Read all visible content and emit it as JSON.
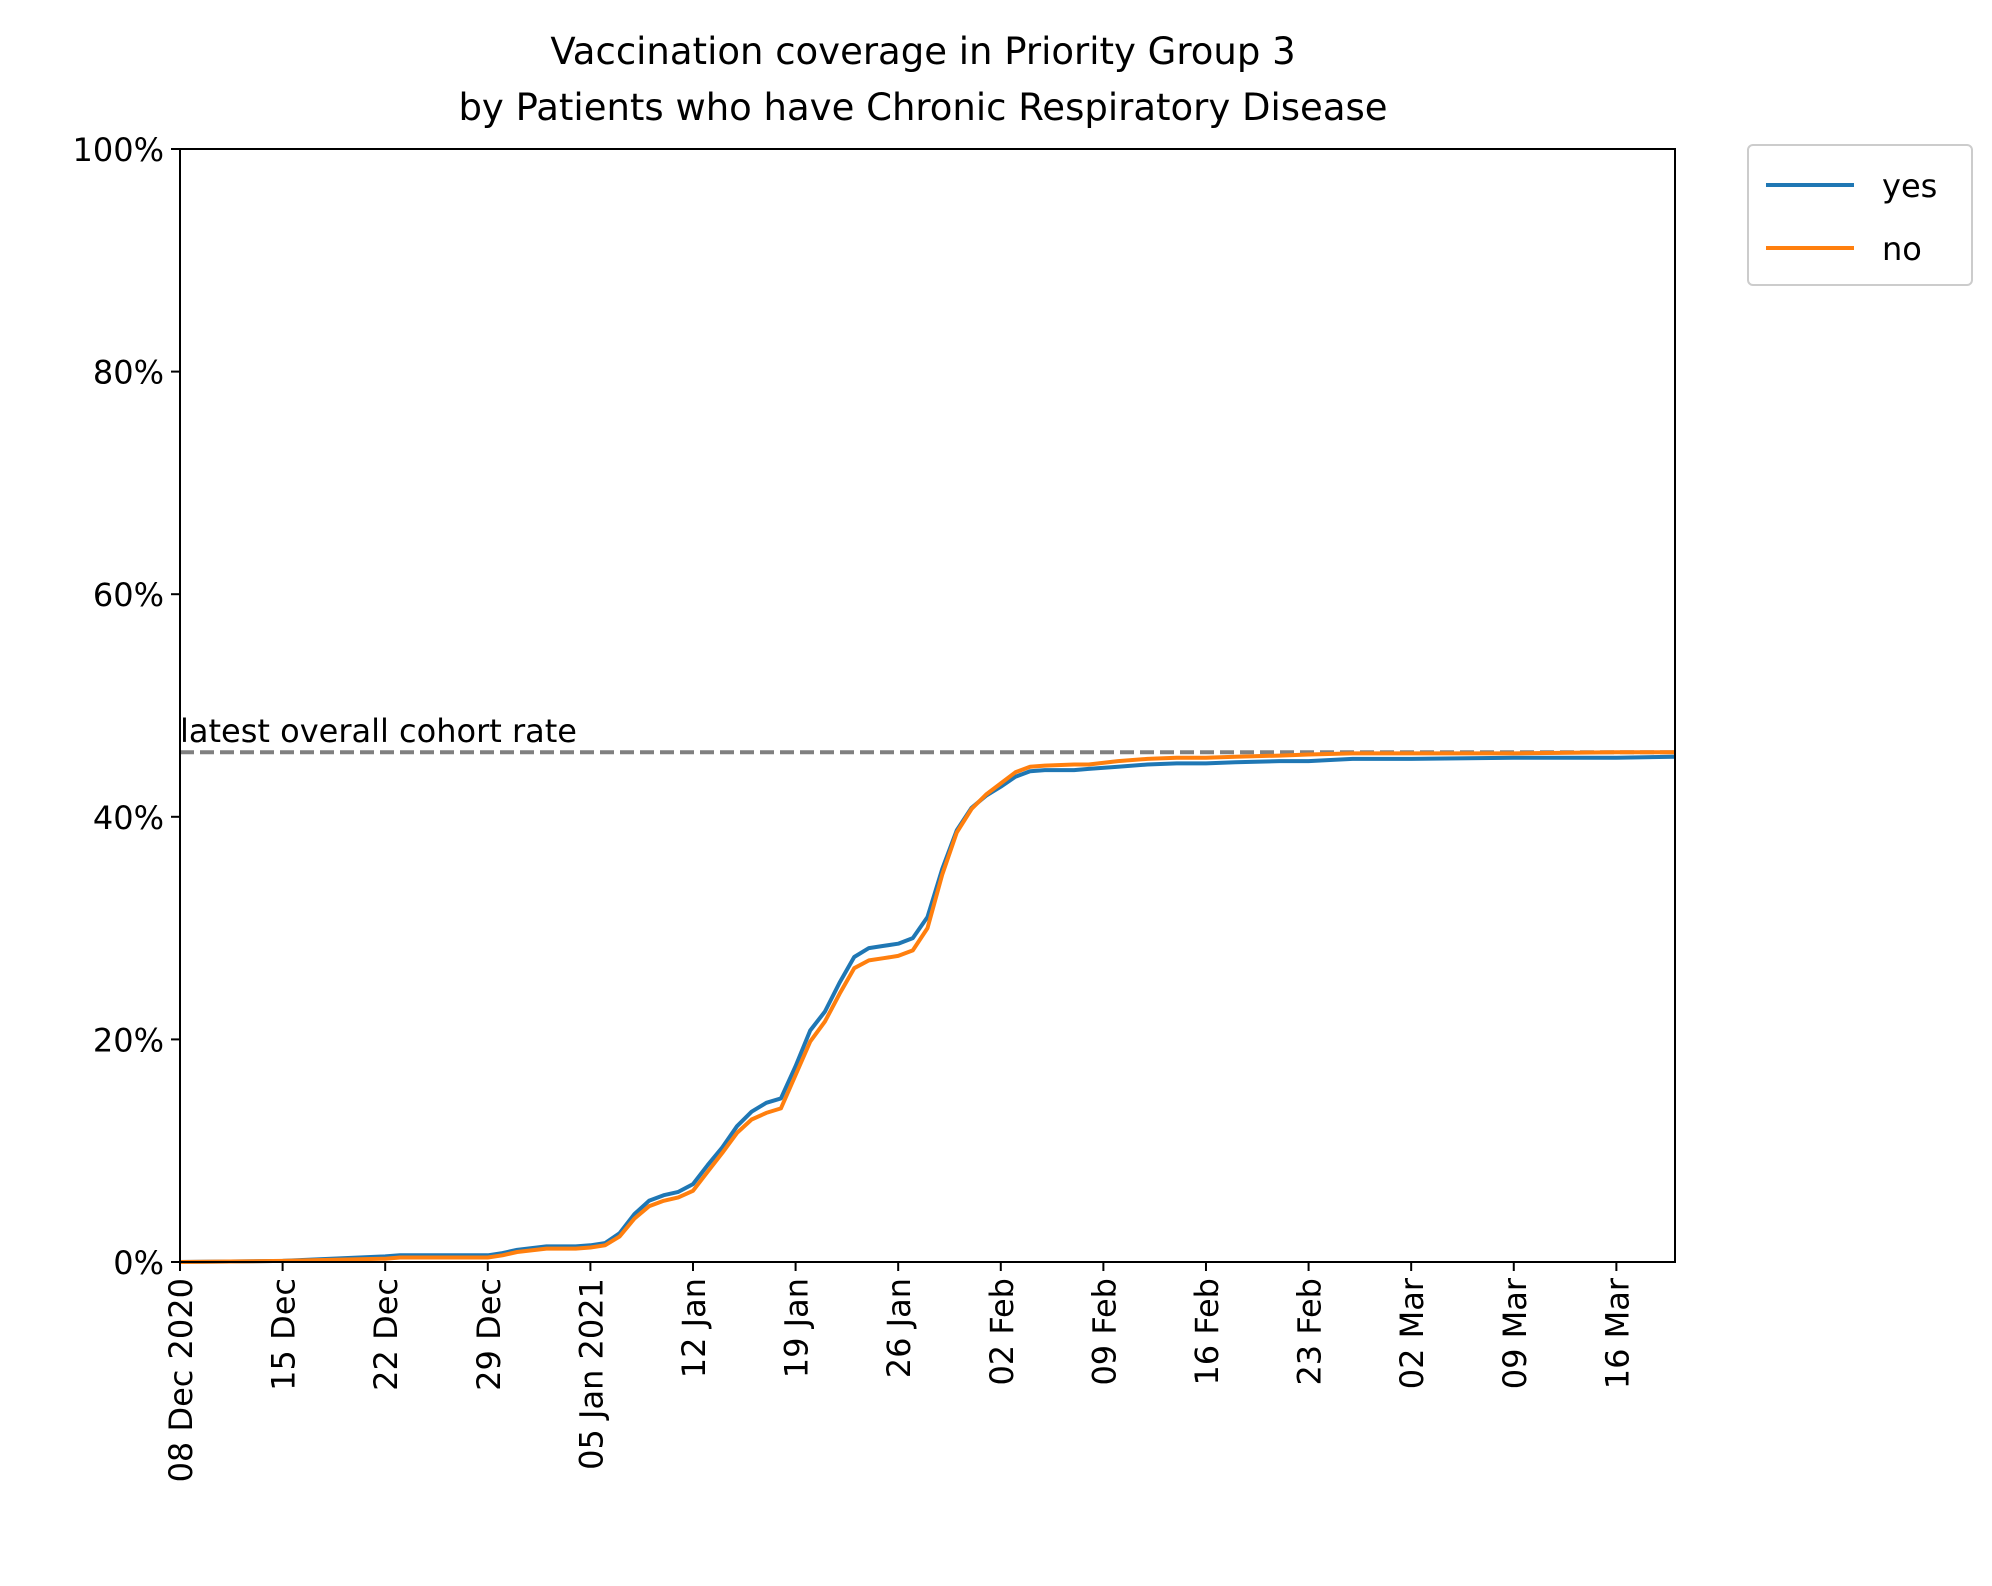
{
  "chart_data": {
    "type": "line",
    "title_line1": "Vaccination coverage in Priority Group 3",
    "title_line2": "by Patients who have Chronic Respiratory Disease",
    "xlabel": "",
    "ylabel": "",
    "ylim": [
      0,
      100
    ],
    "y_ticks": [
      "0%",
      "20%",
      "40%",
      "60%",
      "80%",
      "100%"
    ],
    "x_range": [
      "2020-12-08",
      "2021-03-20"
    ],
    "x_ticks": [
      {
        "date": "2020-12-08",
        "label": "08 Dec 2020"
      },
      {
        "date": "2020-12-15",
        "label": "15 Dec"
      },
      {
        "date": "2020-12-22",
        "label": "22 Dec"
      },
      {
        "date": "2020-12-29",
        "label": "29 Dec"
      },
      {
        "date": "2021-01-05",
        "label": "05 Jan 2021"
      },
      {
        "date": "2021-01-12",
        "label": "12 Jan"
      },
      {
        "date": "2021-01-19",
        "label": "19 Jan"
      },
      {
        "date": "2021-01-26",
        "label": "26 Jan"
      },
      {
        "date": "2021-02-02",
        "label": "02 Feb"
      },
      {
        "date": "2021-02-09",
        "label": "09 Feb"
      },
      {
        "date": "2021-02-16",
        "label": "16 Feb"
      },
      {
        "date": "2021-02-23",
        "label": "23 Feb"
      },
      {
        "date": "2021-03-02",
        "label": "02 Mar"
      },
      {
        "date": "2021-03-09",
        "label": "09 Mar"
      },
      {
        "date": "2021-03-16",
        "label": "16 Mar"
      }
    ],
    "reference_line": {
      "value": 45.8,
      "label": "latest overall cohort rate",
      "color": "#808080"
    },
    "legend_position": "outside top-right",
    "series": [
      {
        "name": "yes",
        "color": "#1f77b4",
        "points": [
          [
            "2020-12-08",
            0.0
          ],
          [
            "2020-12-15",
            0.1
          ],
          [
            "2020-12-22",
            0.5
          ],
          [
            "2020-12-23",
            0.6
          ],
          [
            "2020-12-29",
            0.6
          ],
          [
            "2020-12-30",
            0.8
          ],
          [
            "2020-12-31",
            1.1
          ],
          [
            "2021-01-02",
            1.4
          ],
          [
            "2021-01-04",
            1.4
          ],
          [
            "2021-01-05",
            1.5
          ],
          [
            "2021-01-06",
            1.7
          ],
          [
            "2021-01-07",
            2.6
          ],
          [
            "2021-01-08",
            4.3
          ],
          [
            "2021-01-09",
            5.5
          ],
          [
            "2021-01-10",
            6.0
          ],
          [
            "2021-01-11",
            6.3
          ],
          [
            "2021-01-12",
            7.0
          ],
          [
            "2021-01-13",
            8.7
          ],
          [
            "2021-01-14",
            10.3
          ],
          [
            "2021-01-15",
            12.2
          ],
          [
            "2021-01-16",
            13.5
          ],
          [
            "2021-01-17",
            14.3
          ],
          [
            "2021-01-18",
            14.7
          ],
          [
            "2021-01-19",
            17.6
          ],
          [
            "2021-01-20",
            20.8
          ],
          [
            "2021-01-21",
            22.5
          ],
          [
            "2021-01-22",
            25.1
          ],
          [
            "2021-01-23",
            27.4
          ],
          [
            "2021-01-24",
            28.2
          ],
          [
            "2021-01-25",
            28.4
          ],
          [
            "2021-01-26",
            28.6
          ],
          [
            "2021-01-27",
            29.1
          ],
          [
            "2021-01-28",
            31.0
          ],
          [
            "2021-01-29",
            35.3
          ],
          [
            "2021-01-30",
            38.8
          ],
          [
            "2021-01-31",
            40.8
          ],
          [
            "2021-02-01",
            41.9
          ],
          [
            "2021-02-02",
            42.7
          ],
          [
            "2021-02-03",
            43.6
          ],
          [
            "2021-02-04",
            44.1
          ],
          [
            "2021-02-05",
            44.2
          ],
          [
            "2021-02-07",
            44.2
          ],
          [
            "2021-02-08",
            44.3
          ],
          [
            "2021-02-10",
            44.5
          ],
          [
            "2021-02-12",
            44.7
          ],
          [
            "2021-02-14",
            44.8
          ],
          [
            "2021-02-16",
            44.8
          ],
          [
            "2021-02-18",
            44.9
          ],
          [
            "2021-02-21",
            45.0
          ],
          [
            "2021-02-23",
            45.0
          ],
          [
            "2021-02-26",
            45.2
          ],
          [
            "2021-03-02",
            45.2
          ],
          [
            "2021-03-09",
            45.3
          ],
          [
            "2021-03-16",
            45.3
          ],
          [
            "2021-03-20",
            45.4
          ]
        ]
      },
      {
        "name": "no",
        "color": "#ff7f0e",
        "points": [
          [
            "2020-12-08",
            0.0
          ],
          [
            "2020-12-15",
            0.1
          ],
          [
            "2020-12-22",
            0.3
          ],
          [
            "2020-12-23",
            0.4
          ],
          [
            "2020-12-29",
            0.4
          ],
          [
            "2020-12-30",
            0.6
          ],
          [
            "2020-12-31",
            0.9
          ],
          [
            "2021-01-02",
            1.2
          ],
          [
            "2021-01-04",
            1.2
          ],
          [
            "2021-01-05",
            1.3
          ],
          [
            "2021-01-06",
            1.5
          ],
          [
            "2021-01-07",
            2.3
          ],
          [
            "2021-01-08",
            3.9
          ],
          [
            "2021-01-09",
            5.0
          ],
          [
            "2021-01-10",
            5.5
          ],
          [
            "2021-01-11",
            5.8
          ],
          [
            "2021-01-12",
            6.4
          ],
          [
            "2021-01-13",
            8.1
          ],
          [
            "2021-01-14",
            9.8
          ],
          [
            "2021-01-15",
            11.6
          ],
          [
            "2021-01-16",
            12.8
          ],
          [
            "2021-01-17",
            13.4
          ],
          [
            "2021-01-18",
            13.8
          ],
          [
            "2021-01-19",
            16.8
          ],
          [
            "2021-01-20",
            19.8
          ],
          [
            "2021-01-21",
            21.6
          ],
          [
            "2021-01-22",
            24.1
          ],
          [
            "2021-01-23",
            26.4
          ],
          [
            "2021-01-24",
            27.1
          ],
          [
            "2021-01-25",
            27.3
          ],
          [
            "2021-01-26",
            27.5
          ],
          [
            "2021-01-27",
            28.0
          ],
          [
            "2021-01-28",
            30.0
          ],
          [
            "2021-01-29",
            34.8
          ],
          [
            "2021-01-30",
            38.6
          ],
          [
            "2021-01-31",
            40.7
          ],
          [
            "2021-02-01",
            42.0
          ],
          [
            "2021-02-02",
            43.0
          ],
          [
            "2021-02-03",
            44.0
          ],
          [
            "2021-02-04",
            44.5
          ],
          [
            "2021-02-05",
            44.6
          ],
          [
            "2021-02-07",
            44.7
          ],
          [
            "2021-02-08",
            44.7
          ],
          [
            "2021-02-10",
            45.0
          ],
          [
            "2021-02-12",
            45.2
          ],
          [
            "2021-02-14",
            45.3
          ],
          [
            "2021-02-16",
            45.3
          ],
          [
            "2021-02-18",
            45.4
          ],
          [
            "2021-02-21",
            45.5
          ],
          [
            "2021-02-23",
            45.6
          ],
          [
            "2021-02-26",
            45.7
          ],
          [
            "2021-03-02",
            45.7
          ],
          [
            "2021-03-09",
            45.7
          ],
          [
            "2021-03-16",
            45.8
          ],
          [
            "2021-03-20",
            45.8
          ]
        ]
      }
    ]
  }
}
